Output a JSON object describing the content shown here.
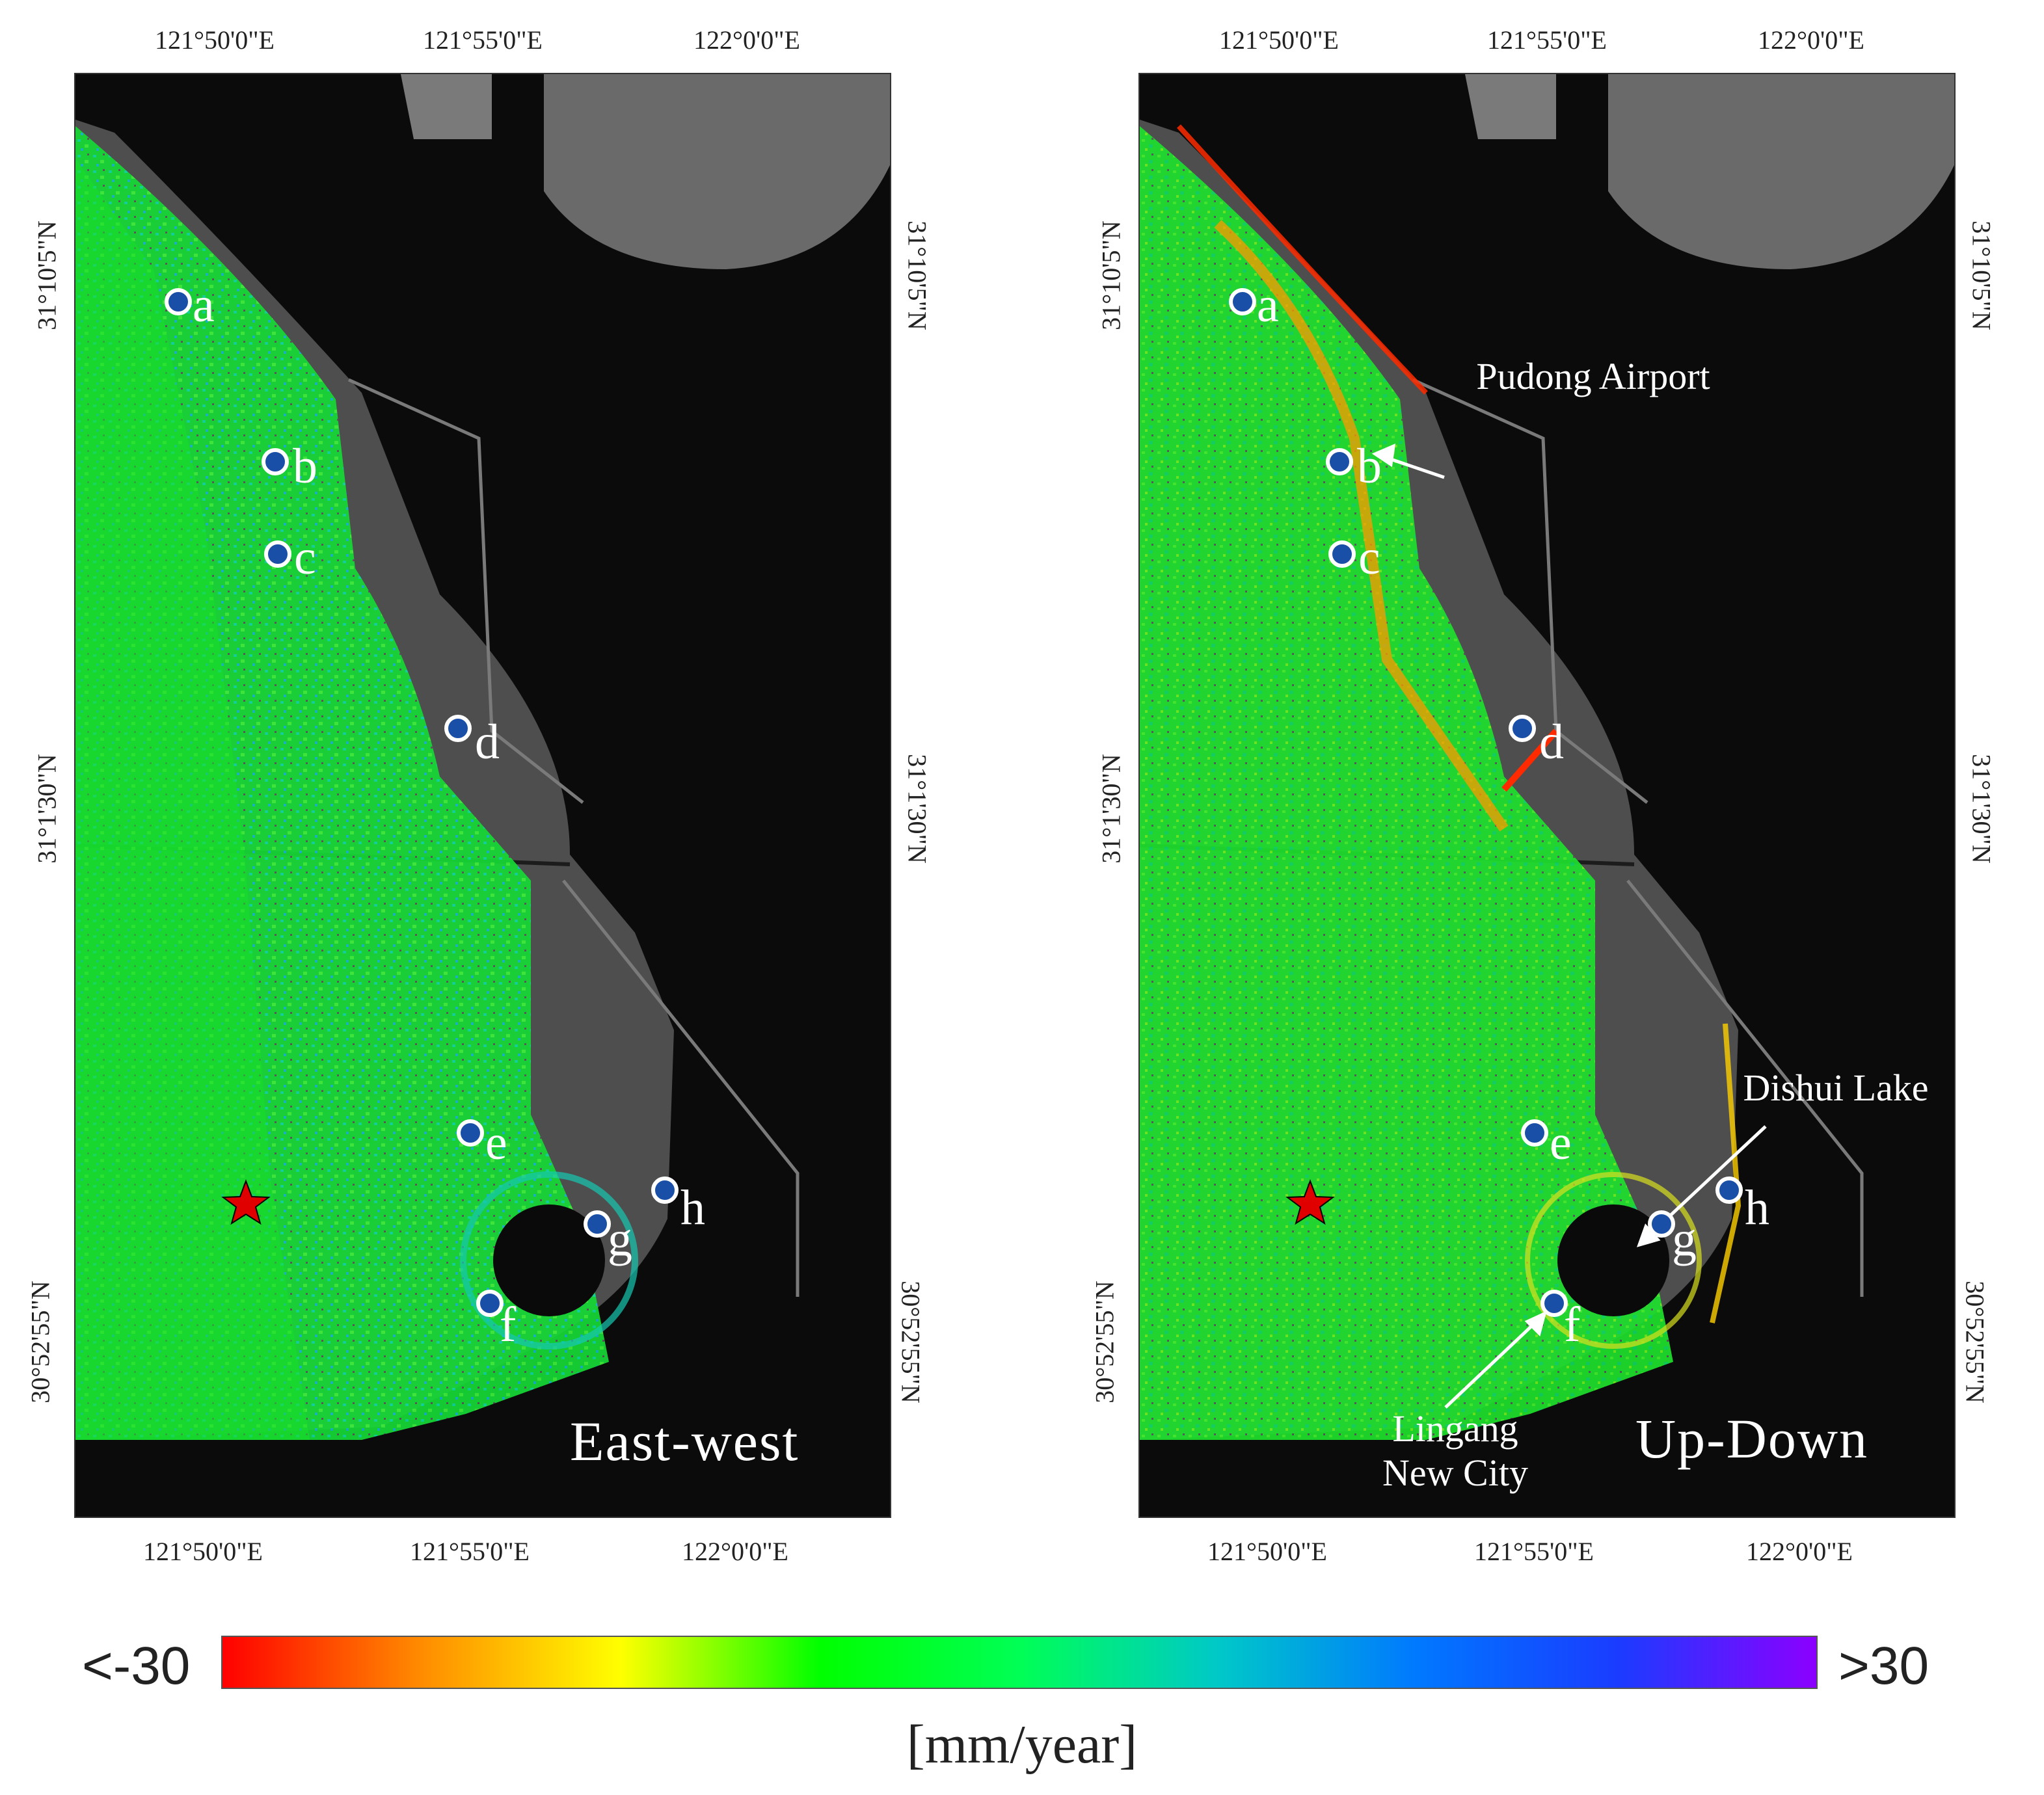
{
  "panels": [
    {
      "id": "left",
      "title": "East-west",
      "top_lon_ticks": [
        "121°50'0\"E",
        "121°55'0\"E",
        "122°0'0\"E"
      ],
      "bottom_lon_ticks": [
        "121°50'0\"E",
        "121°55'0\"E",
        "122°0'0\"E"
      ],
      "left_lat_ticks": [
        "31°10'5\"N",
        "31°1'30\"N",
        "30°52'55\"N"
      ],
      "right_lat_ticks": [
        "31°10'5\"N",
        "31°1'30\"N",
        "30°52'55\"N"
      ],
      "points": [
        "a",
        "b",
        "c",
        "d",
        "e",
        "f",
        "g",
        "h"
      ]
    },
    {
      "id": "right",
      "title": "Up-Down",
      "top_lon_ticks": [
        "121°50'0\"E",
        "121°55'0\"E",
        "122°0'0\"E"
      ],
      "bottom_lon_ticks": [
        "121°50'0\"E",
        "121°55'0\"E",
        "122°0'0\"E"
      ],
      "left_lat_ticks": [
        "31°10'5\"N",
        "31°1'30\"N",
        "30°52'55\"N"
      ],
      "right_lat_ticks": [
        "31°10'5\"N",
        "31°1'30\"N",
        "30°52'55\"N"
      ],
      "points": [
        "a",
        "b",
        "c",
        "d",
        "e",
        "f",
        "g",
        "h"
      ],
      "annotations": {
        "airport": "Pudong Airport",
        "lake": "Dishui Lake",
        "city_line1": "Lingang",
        "city_line2": "New City"
      }
    }
  ],
  "colorbar": {
    "min_label": "<-30",
    "max_label": ">30",
    "unit": "[mm/year]",
    "colors": [
      "#ff0000",
      "#ff8c00",
      "#ffff00",
      "#00ff00",
      "#00ff55",
      "#00c8c8",
      "#0078ff",
      "#1a3cff",
      "#8c00ff"
    ]
  },
  "marker_colors": {
    "point_fill": "#1a4fa8",
    "point_ring": "#ffffff",
    "star": "#e00000",
    "land": "#5a5a5a",
    "sea": "#111111"
  }
}
